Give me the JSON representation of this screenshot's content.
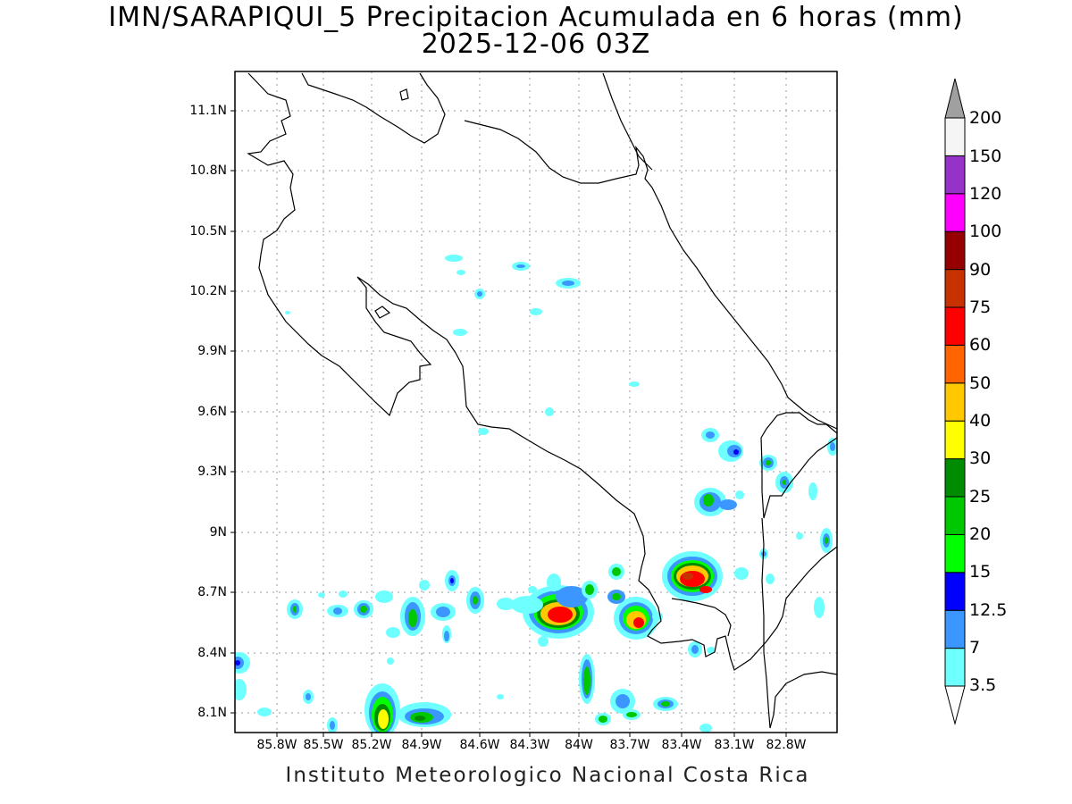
{
  "title": {
    "line1": "IMN/SARAPIQUI_5 Precipitacion Acumulada en 6 horas (mm)",
    "line2": "2025-12-06 03Z"
  },
  "footer": "Instituto Meteorologico Nacional Costa Rica",
  "axes": {
    "lat_labels": [
      "11.1N",
      "10.8N",
      "10.5N",
      "10.2N",
      "9.9N",
      "9.6N",
      "9.3N",
      "9N",
      "8.7N",
      "8.4N",
      "8.1N"
    ],
    "lon_labels": [
      "85.8W",
      "85.5W",
      "85.2W",
      "84.9W",
      "84.6W",
      "84.3W",
      "84W",
      "83.7W",
      "83.4W",
      "83.1W",
      "82.8W"
    ],
    "lat_values": [
      11.1,
      10.8,
      10.5,
      10.2,
      9.9,
      9.6,
      9.3,
      9.0,
      8.7,
      8.4,
      8.1
    ],
    "lon_values": [
      -85.8,
      -85.5,
      -85.2,
      -84.9,
      -84.6,
      -84.3,
      -84.0,
      -83.7,
      -83.4,
      -83.1,
      -82.8
    ],
    "lat_range": [
      8.0,
      11.2
    ],
    "lon_range": [
      -86.05,
      -83.05
    ]
  },
  "colorbar": {
    "labels": [
      "3.5",
      "7",
      "12.5",
      "15",
      "20",
      "25",
      "30",
      "40",
      "50",
      "60",
      "75",
      "90",
      "100",
      "120",
      "150",
      "200"
    ],
    "colors": [
      "#6effff",
      "#3c96ff",
      "#0000ff",
      "#00ff00",
      "#00c800",
      "#008c00",
      "#ffff00",
      "#ffc800",
      "#ff6400",
      "#ff0000",
      "#c83200",
      "#960000",
      "#ff00ff",
      "#9632c8",
      "#f5f5f5"
    ],
    "over_color": "#a0a0a0",
    "under_color": "#ffffff"
  },
  "colors": {
    "coast": "#000000",
    "grid": "#9a9a9a",
    "frame": "#000000"
  }
}
